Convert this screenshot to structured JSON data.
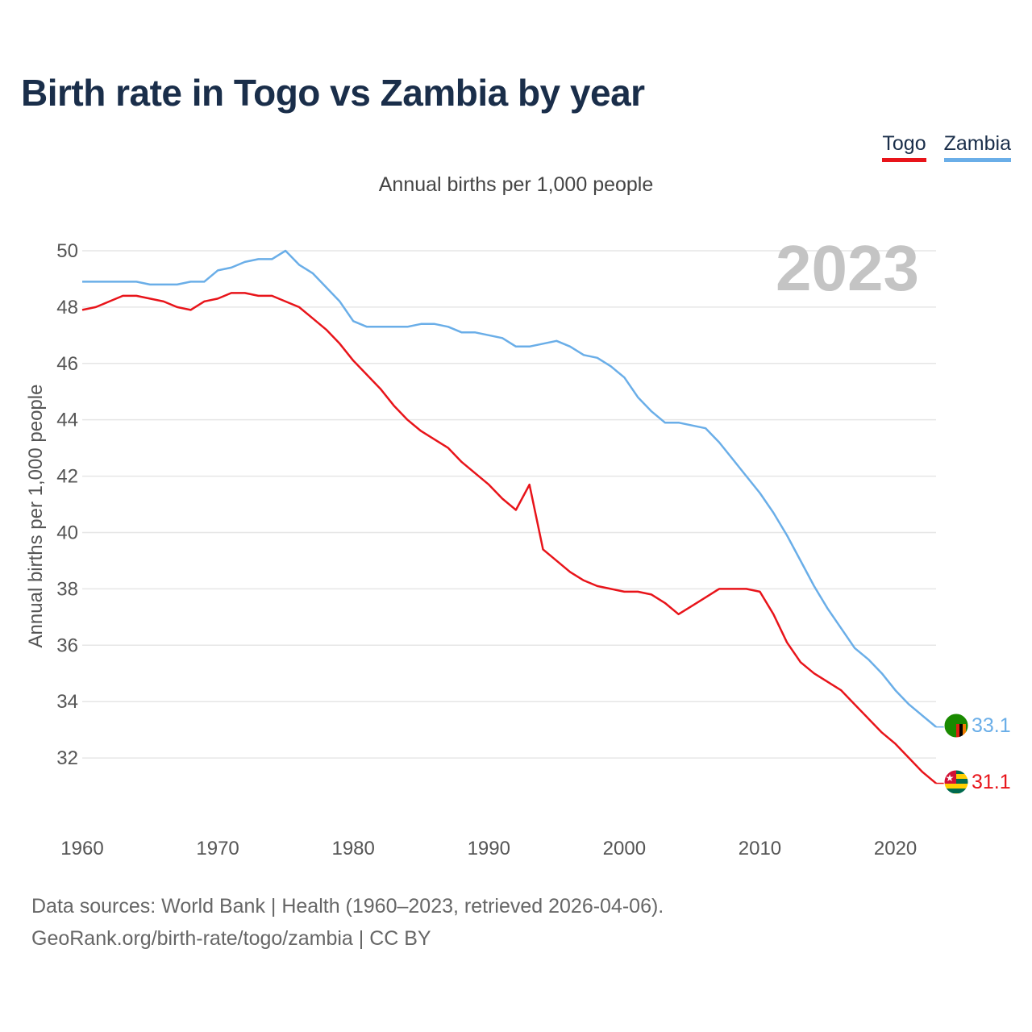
{
  "chart_data": {
    "type": "line",
    "title": "Birth rate in Togo vs Zambia by year",
    "subtitle": "Annual births per 1,000 people",
    "ylabel": "Annual births per 1,000 people",
    "xlabel": "",
    "year_label": "2023",
    "xlim": [
      1960,
      2023
    ],
    "ylim": [
      30,
      51
    ],
    "x_ticks": [
      1960,
      1970,
      1980,
      1990,
      2000,
      2010,
      2020
    ],
    "y_ticks": [
      32,
      34,
      36,
      38,
      40,
      42,
      44,
      46,
      48,
      50
    ],
    "x": [
      1960,
      1961,
      1962,
      1963,
      1964,
      1965,
      1966,
      1967,
      1968,
      1969,
      1970,
      1971,
      1972,
      1973,
      1974,
      1975,
      1976,
      1977,
      1978,
      1979,
      1980,
      1981,
      1982,
      1983,
      1984,
      1985,
      1986,
      1987,
      1988,
      1989,
      1990,
      1991,
      1992,
      1993,
      1994,
      1995,
      1996,
      1997,
      1998,
      1999,
      2000,
      2001,
      2002,
      2003,
      2004,
      2005,
      2006,
      2007,
      2008,
      2009,
      2010,
      2011,
      2012,
      2013,
      2014,
      2015,
      2016,
      2017,
      2018,
      2019,
      2020,
      2021,
      2022,
      2023
    ],
    "series": [
      {
        "name": "Togo",
        "color": "#e8141a",
        "end_label": "31.1",
        "flag": "togo-flag",
        "values": [
          47.9,
          48.0,
          48.2,
          48.4,
          48.4,
          48.3,
          48.2,
          48.0,
          47.9,
          48.2,
          48.3,
          48.5,
          48.5,
          48.4,
          48.4,
          48.2,
          48.0,
          47.6,
          47.2,
          46.7,
          46.1,
          45.6,
          45.1,
          44.5,
          44.0,
          43.6,
          43.3,
          43.0,
          42.5,
          42.1,
          41.7,
          41.2,
          40.8,
          41.7,
          39.4,
          39.0,
          38.6,
          38.3,
          38.1,
          38.0,
          37.9,
          37.9,
          37.8,
          37.5,
          37.1,
          37.4,
          37.7,
          38.0,
          38.0,
          38.0,
          37.9,
          37.1,
          36.1,
          35.4,
          35.0,
          34.7,
          34.4,
          33.9,
          33.4,
          32.9,
          32.5,
          32.0,
          31.5,
          31.1
        ]
      },
      {
        "name": "Zambia",
        "color": "#6aaee8",
        "end_label": "33.1",
        "flag": "zambia-flag",
        "values": [
          48.9,
          48.9,
          48.9,
          48.9,
          48.9,
          48.8,
          48.8,
          48.8,
          48.9,
          48.9,
          49.3,
          49.4,
          49.6,
          49.7,
          49.7,
          50.0,
          49.5,
          49.2,
          48.7,
          48.2,
          47.5,
          47.3,
          47.3,
          47.3,
          47.3,
          47.4,
          47.4,
          47.3,
          47.1,
          47.1,
          47.0,
          46.9,
          46.6,
          46.6,
          46.7,
          46.8,
          46.6,
          46.3,
          46.2,
          45.9,
          45.5,
          44.8,
          44.3,
          43.9,
          43.9,
          43.8,
          43.7,
          43.2,
          42.6,
          42.0,
          41.4,
          40.7,
          39.9,
          39.0,
          38.1,
          37.3,
          36.6,
          35.9,
          35.5,
          35.0,
          34.4,
          33.9,
          33.5,
          33.1
        ]
      }
    ]
  },
  "footer": {
    "line1": "Data sources: World Bank | Health (1960–2023, retrieved 2026-04-06).",
    "line2": "GeoRank.org/birth-rate/togo/zambia | CC BY"
  }
}
